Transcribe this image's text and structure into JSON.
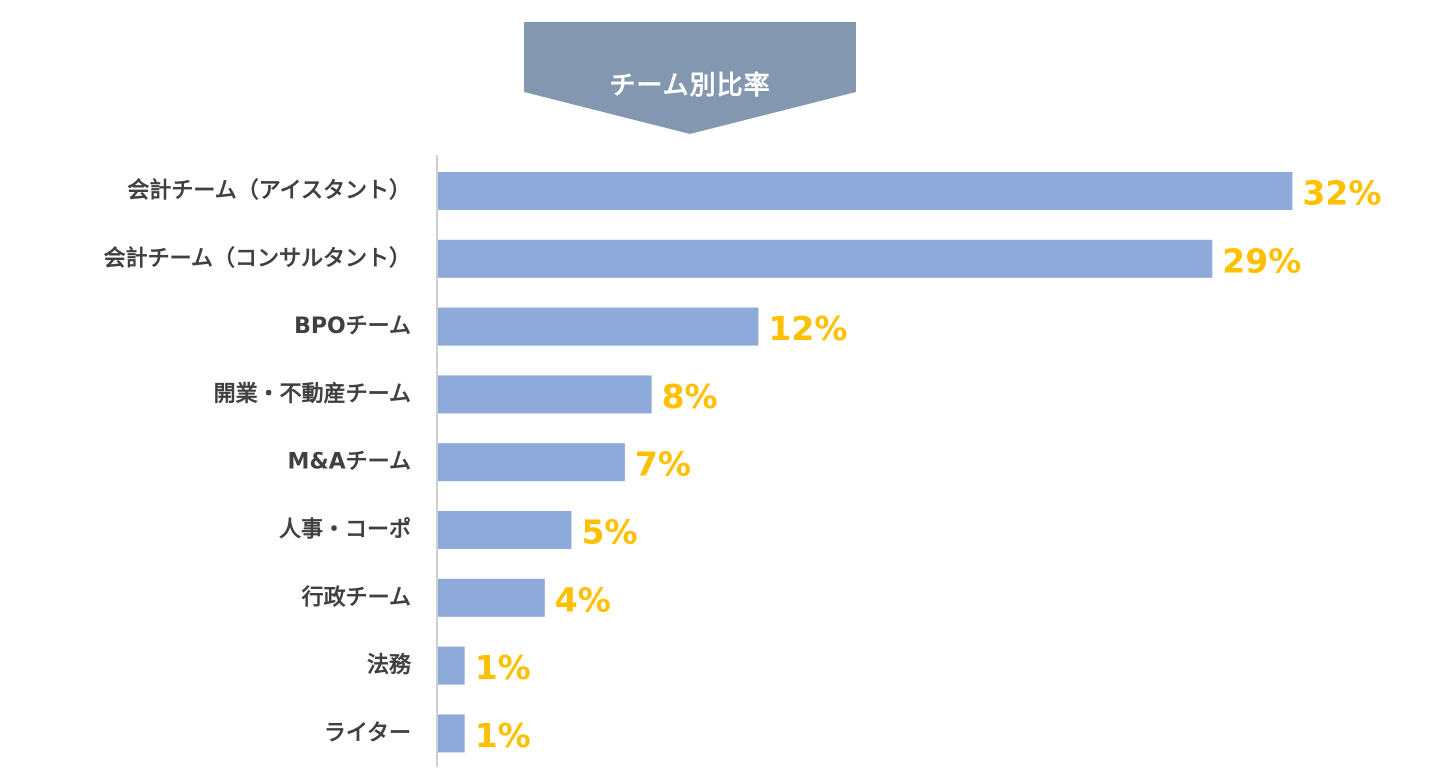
{
  "colors": {
    "bar": "#8eaadb",
    "value_label": "#ffc000",
    "category_label": "#404040",
    "axis": "#bfbfbf",
    "banner": "#8497b0"
  },
  "chart_data": {
    "type": "bar",
    "orientation": "horizontal",
    "title": "チーム別比率",
    "categories": [
      "会計チーム（アイスタント）",
      "会計チーム（コンサルタント）",
      "BPOチーム",
      "開業・不動産チーム",
      "M&Aチーム",
      "人事・コーポ",
      "行政チーム",
      "法務",
      "ライター"
    ],
    "values": [
      32,
      29,
      12,
      8,
      7,
      5,
      4,
      1,
      1
    ],
    "value_labels": [
      "32%",
      "29%",
      "12%",
      "8%",
      "7%",
      "5%",
      "4%",
      "1%",
      "1%"
    ],
    "unit": "%",
    "xlabel": "",
    "ylabel": "",
    "xlim": [
      0,
      36
    ],
    "grid": false,
    "legend": "none"
  }
}
